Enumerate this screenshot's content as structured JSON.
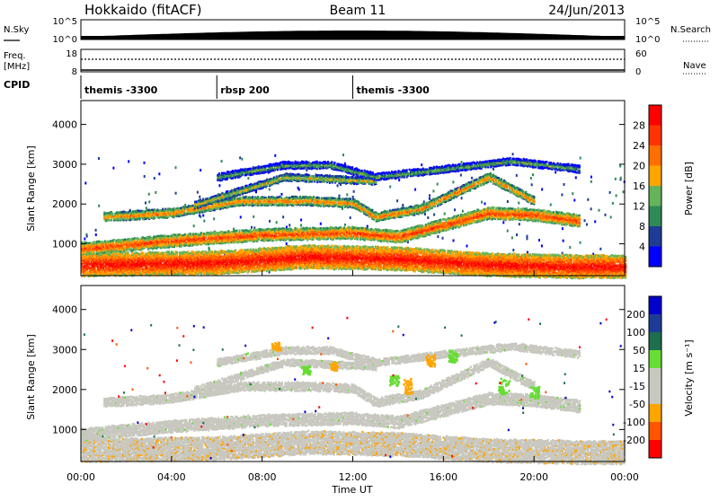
{
  "header": {
    "station": "Hokkaido (fitACF)",
    "beam": "Beam 11",
    "date": "24/Jun/2013"
  },
  "noise_panel": {
    "left_label": "N.Sky",
    "right_label": "N.Search",
    "ticks": [
      "10^5",
      "10^0"
    ],
    "right_ticks": [
      "10^5",
      "10^0"
    ]
  },
  "freq_panel": {
    "left_label_line1": "Freq.",
    "left_label_line2": "[MHz]",
    "left_ticks": [
      "18",
      "8"
    ],
    "right_label": "Nave",
    "right_ticks": [
      "60",
      "0"
    ]
  },
  "cpid": {
    "label": "CPID",
    "segments": [
      {
        "name": "themis -3300",
        "start_hour": 0
      },
      {
        "name": "rbsp 200",
        "start_hour": 6
      },
      {
        "name": "themis -3300",
        "start_hour": 12
      }
    ]
  },
  "colors": {
    "power": [
      "#0000ff",
      "#1e3c96",
      "#2e8b57",
      "#66b35b",
      "#ffa500",
      "#ff6f00",
      "#ff3300",
      "#ff0000"
    ],
    "velocity_scale": [
      "#ff0000",
      "#ff5500",
      "#ffa500",
      "#c8c8c0",
      "#c8c8c0",
      "#66dd33",
      "#1e6e50",
      "#1e3c96",
      "#0000cc"
    ],
    "gray": "#c8c8c0"
  },
  "chart_data": [
    {
      "type": "heatmap",
      "name": "power",
      "ylabel": "Slant Range [km]",
      "y_ticks": [
        1000,
        2000,
        3000,
        4000
      ],
      "ylim": [
        200,
        4600
      ],
      "xlim": [
        0,
        24
      ],
      "colorbar": {
        "label": "Power [dB]",
        "ticks": [
          "4",
          "8",
          "12",
          "16",
          "20",
          "24",
          "28"
        ],
        "range": [
          0,
          32
        ]
      },
      "bands": [
        {
          "t": [
            0,
            6,
            10,
            14,
            18,
            22,
            24
          ],
          "r": [
            500,
            550,
            700,
            650,
            500,
            450,
            450
          ],
          "w": 280,
          "level": 7
        },
        {
          "t": [
            0,
            4,
            8,
            12,
            14,
            16,
            18,
            20,
            22
          ],
          "r": [
            900,
            1100,
            1250,
            1300,
            1200,
            1500,
            1800,
            1750,
            1600
          ],
          "w": 140,
          "level": 6
        },
        {
          "t": [
            1,
            4,
            7,
            10,
            12,
            13,
            15,
            18,
            20
          ],
          "r": [
            1700,
            1800,
            2100,
            2100,
            2050,
            1700,
            1900,
            2700,
            2100
          ],
          "w": 100,
          "level": 5
        },
        {
          "t": [
            5,
            7,
            9,
            11,
            13
          ],
          "r": [
            2000,
            2350,
            2700,
            2650,
            2600
          ],
          "w": 90,
          "level": 4
        },
        {
          "t": [
            6,
            9,
            11,
            13,
            16,
            19,
            22
          ],
          "r": [
            2700,
            3000,
            3000,
            2700,
            2900,
            3100,
            2900
          ],
          "w": 90,
          "level": 3
        }
      ]
    },
    {
      "type": "heatmap",
      "name": "velocity",
      "ylabel": "Slant Range [km]",
      "xlabel": "Time UT",
      "x_ticks": [
        "00:00",
        "04:00",
        "08:00",
        "12:00",
        "16:00",
        "20:00",
        "00:00"
      ],
      "y_ticks": [
        1000,
        2000,
        3000,
        4000
      ],
      "ylim": [
        200,
        4600
      ],
      "xlim": [
        0,
        24
      ],
      "colorbar": {
        "label": "Velocity [m s⁻¹]",
        "ticks": [
          "200",
          "100",
          "50",
          "15",
          "-15",
          "-50",
          "-100",
          "-200"
        ]
      },
      "patches": [
        {
          "t0": 9.7,
          "t1": 10.1,
          "r0": 2400,
          "r1": 2600,
          "v": "pos"
        },
        {
          "t0": 13.6,
          "t1": 14.0,
          "r0": 2100,
          "r1": 2400,
          "v": "pos"
        },
        {
          "t0": 16.2,
          "t1": 16.6,
          "r0": 2700,
          "r1": 3000,
          "v": "pos"
        },
        {
          "t0": 18.4,
          "t1": 18.9,
          "r0": 1900,
          "r1": 2300,
          "v": "pos"
        },
        {
          "t0": 19.8,
          "t1": 20.2,
          "r0": 1800,
          "r1": 2100,
          "v": "pos"
        },
        {
          "t0": 8.4,
          "t1": 8.8,
          "r0": 3000,
          "r1": 3200,
          "v": "neg"
        },
        {
          "t0": 11.0,
          "t1": 11.3,
          "r0": 2500,
          "r1": 2700,
          "v": "neg"
        },
        {
          "t0": 14.2,
          "t1": 14.6,
          "r0": 1900,
          "r1": 2300,
          "v": "neg"
        },
        {
          "t0": 15.2,
          "t1": 15.6,
          "r0": 2600,
          "r1": 2900,
          "v": "neg"
        }
      ]
    }
  ]
}
